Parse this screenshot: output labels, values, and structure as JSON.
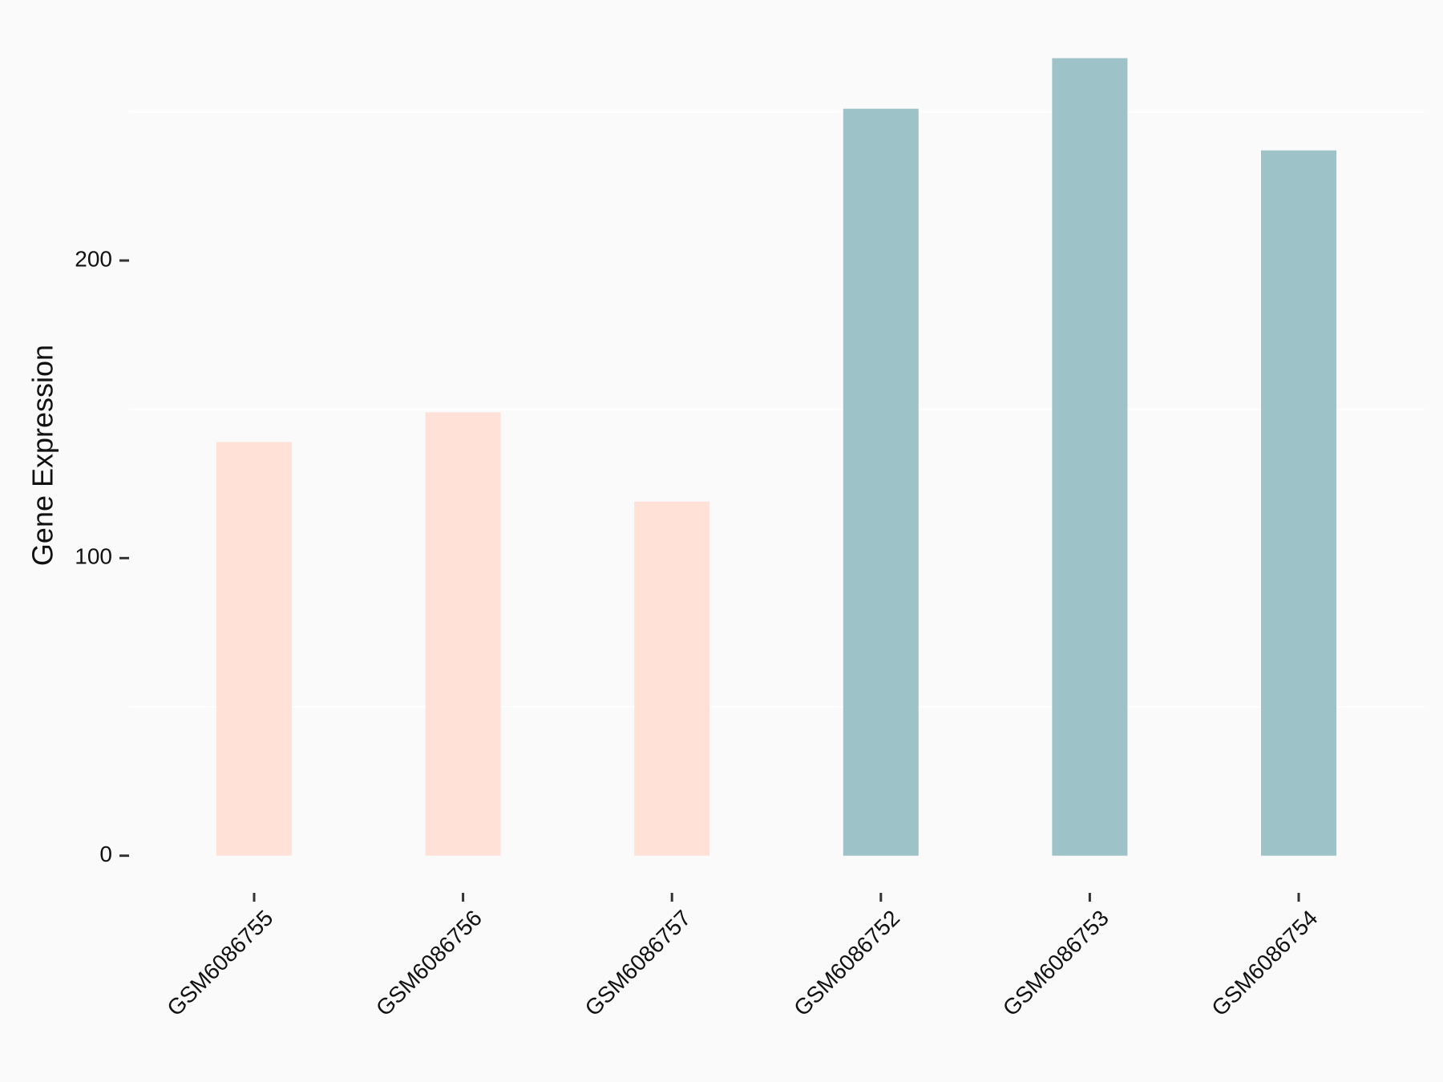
{
  "chart_data": {
    "type": "bar",
    "y_label": "Gene Expression",
    "categories": [
      "GSM6086755",
      "GSM6086756",
      "GSM6086757",
      "GSM6086752",
      "GSM6086753",
      "GSM6086754"
    ],
    "values": [
      139,
      149,
      119,
      251,
      268,
      237
    ],
    "colors": [
      "#ffe1d8",
      "#ffe1d8",
      "#ffe1d8",
      "#9dc3c8",
      "#9dc3c8",
      "#9dc3c8"
    ],
    "ylim": [
      -12,
      281
    ],
    "yticks": [
      0,
      100,
      200
    ],
    "minor_grid": [
      50,
      150,
      250
    ]
  }
}
